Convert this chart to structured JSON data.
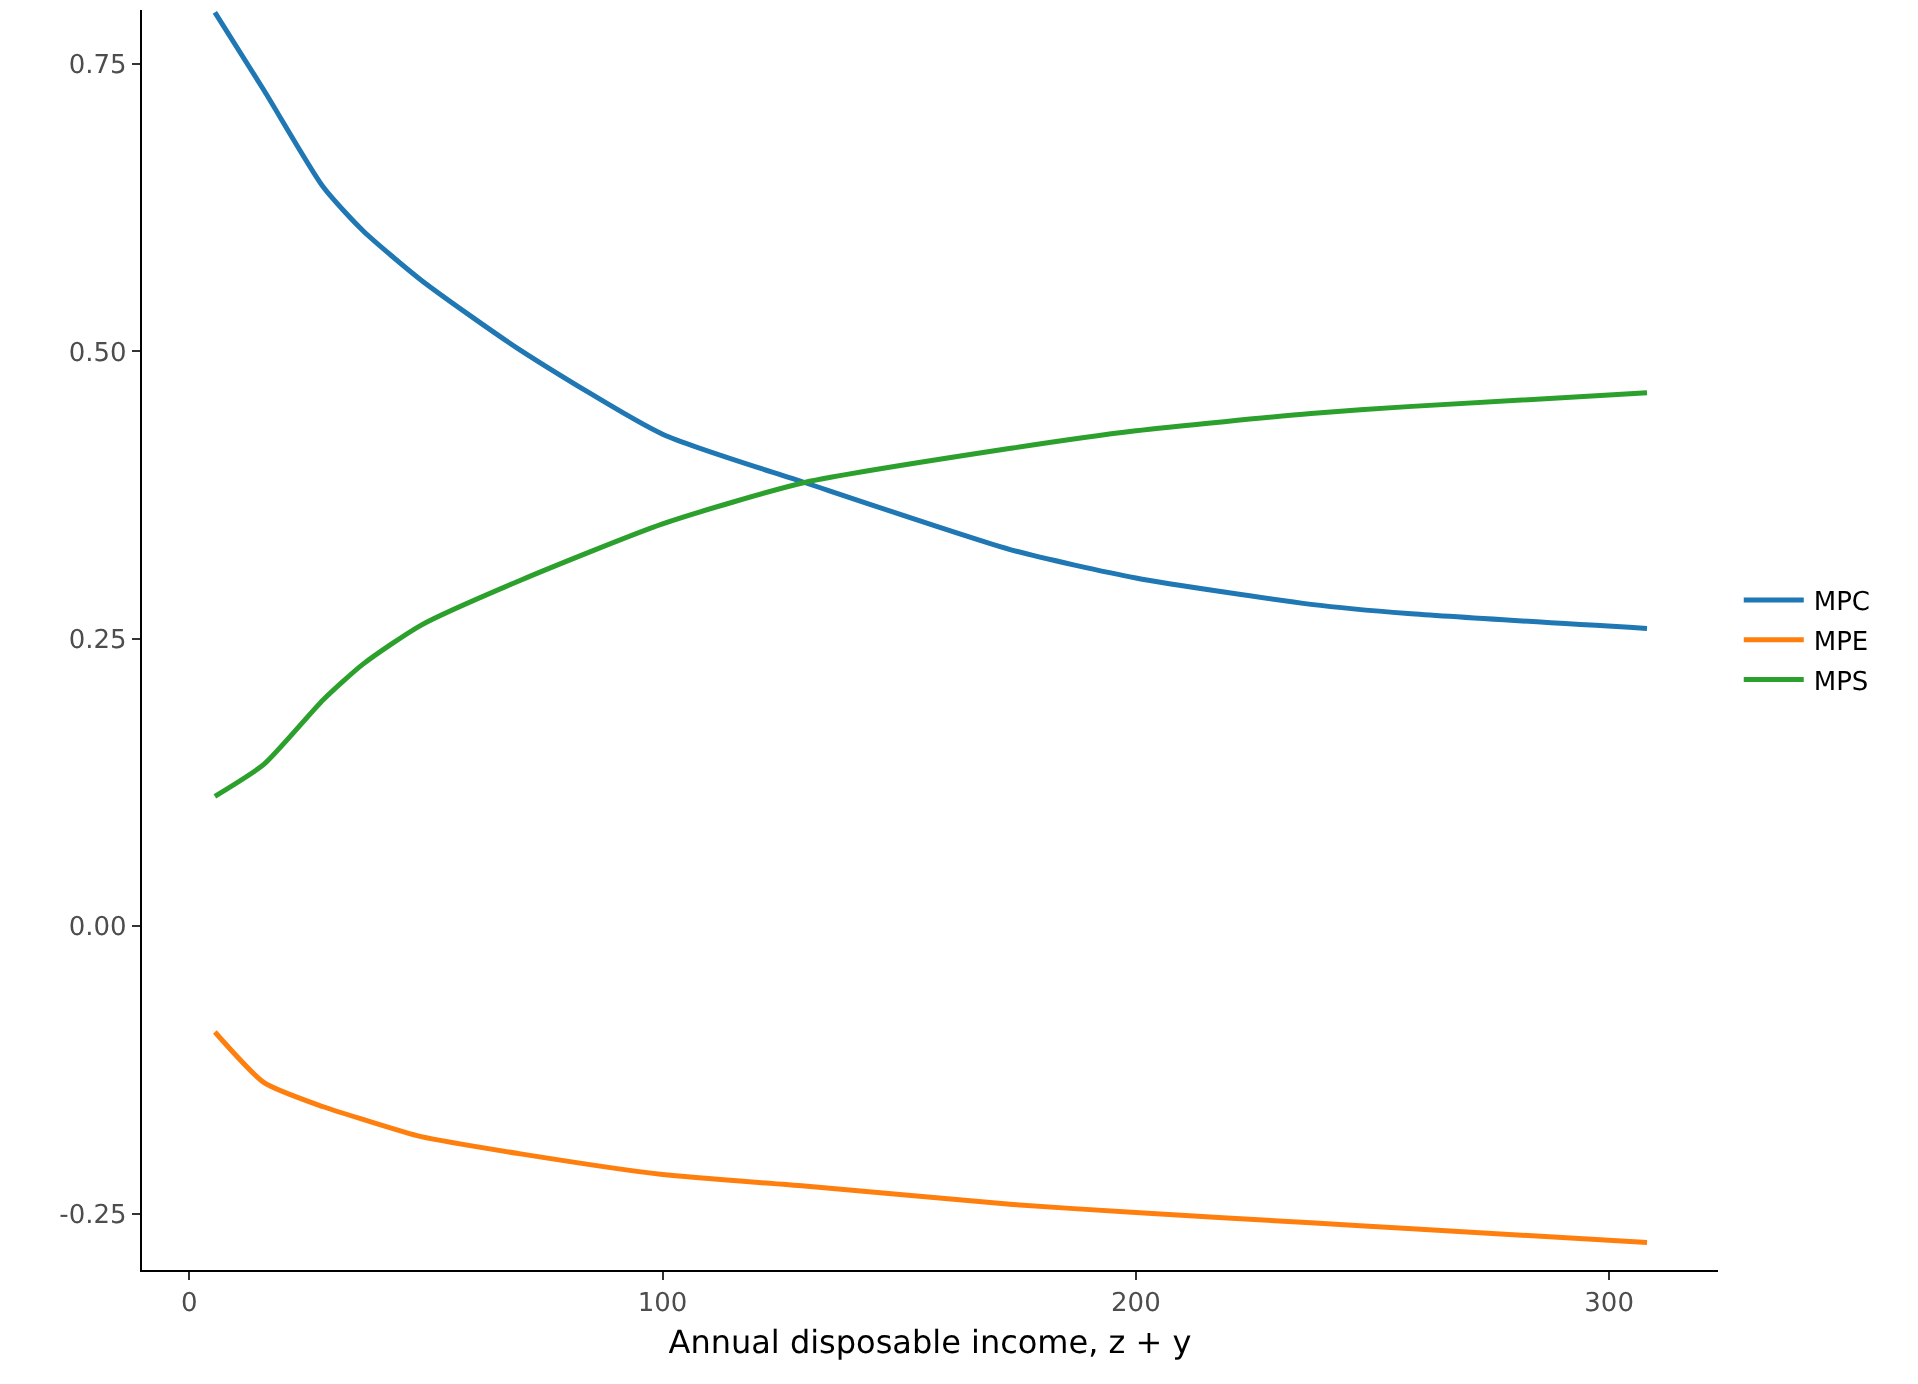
{
  "chart_data": {
    "type": "line",
    "xlabel": "Annual disposable income, z + y",
    "x": [
      5.4,
      15.8,
      28.3,
      36.7,
      49,
      70,
      100,
      130,
      174,
      200,
      237,
      257.5,
      308
    ],
    "series": [
      {
        "name": "MPC",
        "color": "#1f77b4",
        "values": [
          0.795,
          0.727,
          0.643,
          0.605,
          0.562,
          0.501,
          0.428,
          0.386,
          0.327,
          0.303,
          0.28,
          0.272,
          0.259
        ]
      },
      {
        "name": "MPE",
        "color": "#ff7f0e",
        "values": [
          -0.092,
          -0.136,
          -0.157,
          -0.168,
          -0.183,
          -0.198,
          -0.216,
          -0.226,
          -0.242,
          -0.249,
          -0.258,
          -0.263,
          -0.275
        ]
      },
      {
        "name": "MPS",
        "color": "#2ca02c",
        "values": [
          0.113,
          0.141,
          0.197,
          0.228,
          0.262,
          0.301,
          0.35,
          0.386,
          0.416,
          0.431,
          0.446,
          0.452,
          0.464
        ]
      }
    ],
    "xlim": [
      -10,
      323
    ],
    "ylim": [
      -0.299,
      0.797
    ],
    "xticks": [
      0,
      100,
      200,
      300
    ],
    "yticks": [
      -0.25,
      {
        "value": 0,
        "label": "0.00"
      },
      {
        "value": 0.25,
        "label": "0.25"
      },
      {
        "value": 0.5,
        "label": "0.50"
      },
      0.75
    ],
    "legend": "right",
    "marker": "none",
    "line_style": "solid"
  }
}
